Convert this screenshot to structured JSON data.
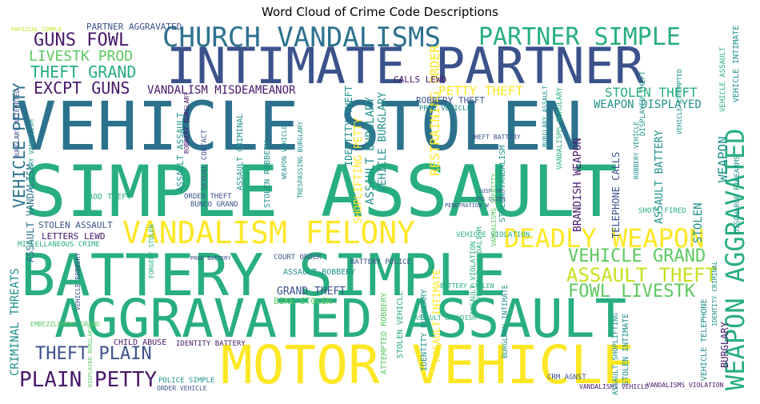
{
  "title": "Word Cloud of Crime Code Descriptions",
  "palette": {
    "purple": "#48186a",
    "indigo": "#3b528b",
    "blue": "#2c728e",
    "teal": "#21918c",
    "green": "#28ae80",
    "lime": "#5ec962",
    "yellow": "#fde725",
    "gold": "#c8e020"
  },
  "words": [
    {
      "text": "VEHICLE STOLEN",
      "color": "blue"
    },
    {
      "text": "SIMPLE ASSAULT",
      "color": "green"
    },
    {
      "text": "INTIMATE PARTNER",
      "color": "indigo"
    },
    {
      "text": "BATTERY SIMPLE",
      "color": "green"
    },
    {
      "text": "AGGRAVATED ASSAULT",
      "color": "green"
    },
    {
      "text": "MOTOR VEHICLE",
      "color": "yellow"
    },
    {
      "text": "CHURCH VANDALISMS",
      "color": "blue"
    },
    {
      "text": "PARTNER SIMPLE",
      "color": "green"
    },
    {
      "text": "VANDALISM FELONY",
      "color": "yellow"
    },
    {
      "text": "DEADLY WEAPON",
      "color": "yellow"
    },
    {
      "text": "WEAPON AGGRAVATED",
      "color": "green"
    },
    {
      "text": "VEHICLE GRAND",
      "color": "lime"
    },
    {
      "text": "ASSAULT THEFT",
      "color": "gold"
    },
    {
      "text": "FOWL LIVESTK",
      "color": "lime"
    },
    {
      "text": "GUNS FOWL",
      "color": "purple"
    },
    {
      "text": "LIVESTK PROD",
      "color": "lime"
    },
    {
      "text": "THEFT GRAND",
      "color": "green"
    },
    {
      "text": "EXCPT GUNS",
      "color": "purple"
    },
    {
      "text": "VEHICLE PETTY",
      "color": "blue"
    },
    {
      "text": "VANDALISM MISDEAMEANOR",
      "color": "purple"
    },
    {
      "text": "THEFT PLAIN",
      "color": "indigo"
    },
    {
      "text": "PLAIN PETTY",
      "color": "purple"
    },
    {
      "text": "PETTY THEFT",
      "color": "yellow"
    },
    {
      "text": "STOLEN THEFT",
      "color": "green"
    },
    {
      "text": "WEAPON DISPLAYED",
      "color": "teal"
    },
    {
      "text": "WEAPON",
      "color": "teal"
    },
    {
      "text": "STOLEN",
      "color": "teal"
    },
    {
      "text": "ASSAULT BATTERY",
      "color": "teal"
    },
    {
      "text": "ASSAULT BURGLARY",
      "color": "teal"
    },
    {
      "text": "VEHICLE BURGLARY",
      "color": "teal"
    },
    {
      "text": "RESTRAINING ORDER",
      "color": "yellow"
    },
    {
      "text": "IDENTITY THEFT",
      "color": "teal"
    },
    {
      "text": "SHOPLIFTING PETTY",
      "color": "yellow"
    },
    {
      "text": "BRANDISH WEAPON",
      "color": "purple"
    },
    {
      "text": "ASSAULT VANDALISM",
      "color": "blue"
    },
    {
      "text": "GRAND THEFT",
      "color": "indigo"
    },
    {
      "text": "CRIMINAL THREATS",
      "color": "teal"
    },
    {
      "text": "TELEPHONE CALLS",
      "color": "indigo"
    },
    {
      "text": "STOLEN VANDALISM",
      "color": "teal"
    },
    {
      "text": "BURGLARY",
      "color": "purple"
    },
    {
      "text": "PARTNER AGGRAVATED",
      "color": "indigo"
    },
    {
      "text": "CALLS LEWD",
      "color": "purple"
    },
    {
      "text": "ROBBERY THEFT",
      "color": "indigo"
    },
    {
      "text": "PROD VEHICLE",
      "color": "teal"
    },
    {
      "text": "ASSAULT ASSAULT",
      "color": "teal"
    },
    {
      "text": "ASSAULT CRIMINAL",
      "color": "teal"
    },
    {
      "text": "STOLEN ROBBERY",
      "color": "teal"
    },
    {
      "text": "PROD THEFT",
      "color": "green"
    },
    {
      "text": "STOLEN ASSAULT",
      "color": "indigo"
    },
    {
      "text": "ORDER THEFT",
      "color": "indigo"
    },
    {
      "text": "BUNCO GRAND",
      "color": "indigo"
    },
    {
      "text": "LETTERS LEWD",
      "color": "purple"
    },
    {
      "text": "MISCELLANEOUS CRIME",
      "color": "green"
    },
    {
      "text": "COURT ORDER",
      "color": "indigo"
    },
    {
      "text": "ASSAULT ROBBERY",
      "color": "teal"
    },
    {
      "text": "BIKE STOLEN",
      "color": "lime"
    },
    {
      "text": "BATTERY POLICE",
      "color": "indigo"
    },
    {
      "text": "IDENTITY BATTERY",
      "color": "purple"
    },
    {
      "text": "CHILD ABUSE",
      "color": "purple"
    },
    {
      "text": "STOLEN VEHICLE",
      "color": "green"
    },
    {
      "text": "ASSAULT INTIMATE",
      "color": "yellow"
    },
    {
      "text": "IDENTITY BURGLARY",
      "color": "teal"
    },
    {
      "text": "BURGLARY INTIMATE",
      "color": "teal"
    },
    {
      "text": "STOLEN INTIMATE",
      "color": "teal"
    },
    {
      "text": "VEHICLE TELEPHONE",
      "color": "teal"
    },
    {
      "text": "VANDALISMS BURGLARY",
      "color": "green"
    },
    {
      "text": "ATTEMPTED ROBBERY",
      "color": "lime"
    },
    {
      "text": "VEHICLE VIOLATION",
      "color": "green"
    },
    {
      "text": "SHOTS FIRED",
      "color": "green"
    },
    {
      "text": "ASSAULT VIOLATION",
      "color": "green"
    },
    {
      "text": "VEHICLE ASSAULT",
      "color": "green"
    },
    {
      "text": "VEHICLE VANDALISM",
      "color": "green"
    },
    {
      "text": "DISPLAYED THEFT",
      "color": "teal"
    },
    {
      "text": "ROBBERY VEHICLE",
      "color": "teal"
    },
    {
      "text": "VANDALISMS VEHICLE",
      "color": "purple"
    },
    {
      "text": "POLICE SIMPLE",
      "color": "teal"
    },
    {
      "text": "ORDER VEHICLE",
      "color": "indigo"
    },
    {
      "text": "DISPLAYED BURGLARY",
      "color": "lime"
    },
    {
      "text": "EMBEZZLEMENT GRAND",
      "color": "lime"
    },
    {
      "text": "FORGERY STOLEN",
      "color": "green"
    },
    {
      "text": "VEHICLE ROBBERY",
      "color": "indigo"
    },
    {
      "text": "ASSAULT BRANDISH",
      "color": "green"
    },
    {
      "text": "CRM AGNST",
      "color": "indigo"
    },
    {
      "text": "VANDALISMS VIOLATION",
      "color": "purple"
    },
    {
      "text": "PHYSICAL SIMPLE",
      "color": "gold"
    },
    {
      "text": "SEXUAL CONTACT",
      "color": "indigo"
    },
    {
      "text": "BURGLARY ATTEMPTED",
      "color": "indigo"
    },
    {
      "text": "ROBBERY BURGLARY",
      "color": "purple"
    },
    {
      "text": "WEAPON VEHICLE",
      "color": "teal"
    },
    {
      "text": "BURGLARY VANDALISM",
      "color": "teal"
    },
    {
      "text": "TRESPASSING BURGLARY",
      "color": "teal"
    },
    {
      "text": "PROD BATTERY",
      "color": "indigo"
    },
    {
      "text": "SUSP YRS",
      "color": "indigo"
    },
    {
      "text": "YRS OLDER",
      "color": "indigo"
    },
    {
      "text": "PENETRATION W",
      "color": "indigo"
    },
    {
      "text": "BURGLARY ASSAULT",
      "color": "teal"
    },
    {
      "text": "VEHICLE INTIMATE",
      "color": "teal"
    },
    {
      "text": "VEHICLE ATTEMPTED",
      "color": "teal"
    },
    {
      "text": "DISCHARGE FIREARMS",
      "color": "teal"
    },
    {
      "text": "ASSAULT SHOPLIFTING",
      "color": "teal"
    },
    {
      "text": "IDENTITY CRIMINAL",
      "color": "teal"
    },
    {
      "text": "THEFT BATTERY",
      "color": "indigo"
    },
    {
      "text": "BATTERY STOLEN",
      "color": "green"
    },
    {
      "text": "VANDALISMS IDENTITY",
      "color": "lime"
    }
  ]
}
